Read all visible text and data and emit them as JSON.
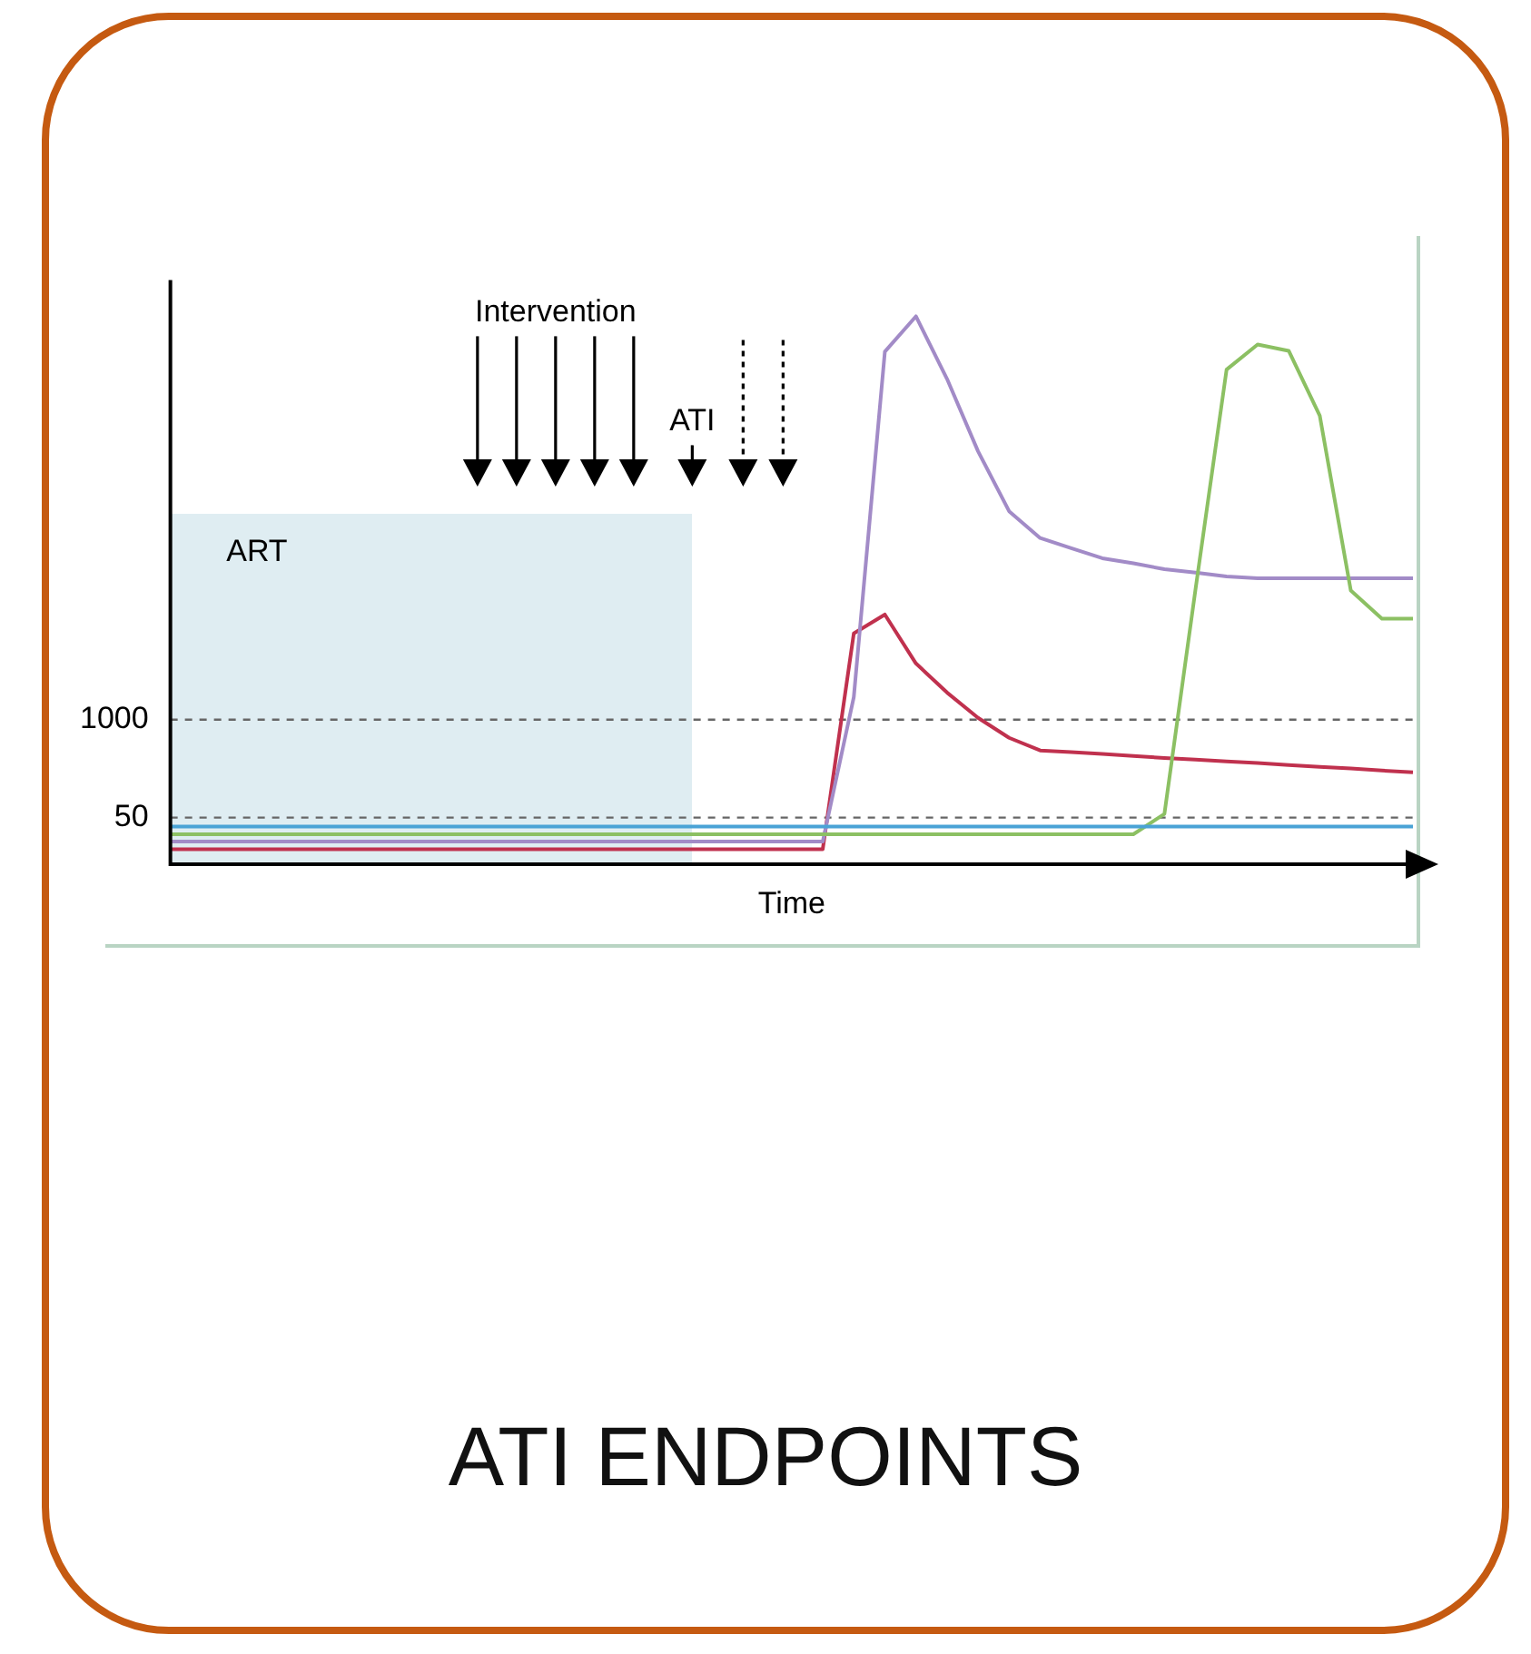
{
  "chart_data": {
    "type": "line",
    "title": "ATI ENDPOINTS",
    "xlabel": "Time",
    "log": "y",
    "marker": "none",
    "legend": false,
    "grid": false,
    "tick_labels": "y",
    "categories": [
      null,
      null,
      null,
      null,
      null,
      null,
      null,
      null,
      null,
      null,
      null,
      null,
      null,
      null,
      null,
      null,
      null,
      null,
      null,
      null,
      null,
      null,
      null,
      null,
      null,
      null,
      null,
      null,
      null,
      null,
      null,
      null,
      null,
      null,
      null,
      null,
      null,
      null,
      null,
      null,
      null
    ],
    "ylim": [
      12,
      700000000
    ],
    "yticks": [
      50,
      1000
    ],
    "series": [
      {
        "color": "#4aa3d6",
        "values": [
          38,
          38,
          38,
          38,
          38,
          38,
          38,
          38,
          38,
          38,
          38,
          38,
          38,
          38,
          38,
          38,
          38,
          38,
          38,
          38,
          38,
          38,
          38,
          38,
          38,
          38,
          38,
          38,
          38,
          38,
          38,
          38,
          38,
          38,
          38,
          38,
          38,
          38,
          38,
          38,
          38
        ]
      },
      {
        "color": "#8cc063",
        "values": [
          30,
          30,
          30,
          30,
          30,
          30,
          30,
          30,
          30,
          30,
          30,
          30,
          30,
          30,
          30,
          30,
          30,
          30,
          30,
          30,
          30,
          30,
          30,
          30,
          30,
          30,
          30,
          30,
          30,
          30,
          30,
          30,
          56,
          54000,
          45000000,
          97000000,
          80000000,
          11000000,
          52000,
          22000,
          22000
        ]
      },
      {
        "color": "#a28bc7",
        "values": [
          24,
          24,
          24,
          24,
          24,
          24,
          24,
          24,
          24,
          24,
          24,
          24,
          24,
          24,
          24,
          24,
          24,
          24,
          24,
          24,
          24,
          24,
          2000,
          78000000,
          230000000,
          34000000,
          3700000,
          590000,
          260000,
          190000,
          140000,
          120000,
          100000,
          90000,
          80000,
          76000,
          76000,
          76000,
          76000,
          76000,
          76000
        ]
      },
      {
        "color": "#c0314e",
        "values": [
          19,
          19,
          19,
          19,
          19,
          19,
          19,
          19,
          19,
          19,
          19,
          19,
          19,
          19,
          19,
          19,
          19,
          19,
          19,
          19,
          19,
          19,
          14000,
          25000,
          5600,
          2300,
          1060,
          575,
          390,
          370,
          350,
          330,
          310,
          295,
          280,
          265,
          250,
          236,
          225,
          211,
          200
        ]
      }
    ],
    "ref_lines": [
      {
        "axis": "y",
        "value": 1000,
        "label": null,
        "color": "#666666",
        "line_style": "dashed"
      },
      {
        "axis": "y",
        "value": 50,
        "label": null,
        "color": "#666666",
        "line_style": "dashed"
      }
    ],
    "annotations": [
      "Intervention",
      "ATI",
      "ART"
    ]
  }
}
